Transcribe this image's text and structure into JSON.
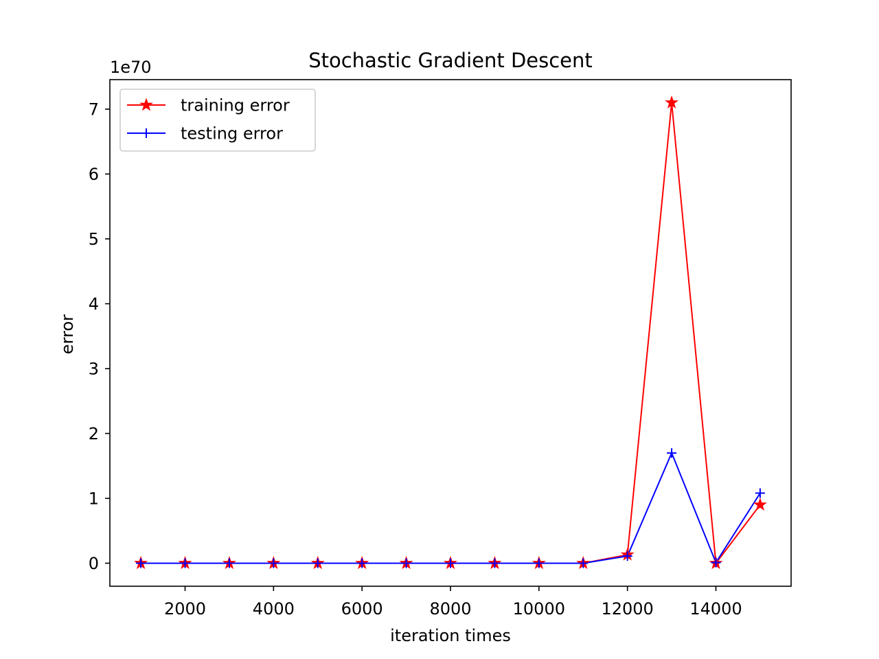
{
  "chart_data": {
    "type": "line",
    "title": "Stochastic Gradient Descent",
    "xlabel": "iteration times",
    "ylabel": "error",
    "y_offset_label": "1e70",
    "y_scale_exponent": 70,
    "xlim": [
      300,
      15700
    ],
    "ylim": [
      -0.355,
      7.455
    ],
    "x_ticks": [
      2000,
      4000,
      6000,
      8000,
      10000,
      12000,
      14000
    ],
    "x_tick_labels": [
      "2000",
      "4000",
      "6000",
      "8000",
      "10000",
      "12000",
      "14000"
    ],
    "y_ticks": [
      0,
      1,
      2,
      3,
      4,
      5,
      6,
      7
    ],
    "y_tick_labels": [
      "0",
      "1",
      "2",
      "3",
      "4",
      "5",
      "6",
      "7"
    ],
    "x": [
      1000,
      2000,
      3000,
      4000,
      5000,
      6000,
      7000,
      8000,
      9000,
      10000,
      11000,
      12000,
      13000,
      14000,
      15000
    ],
    "series": [
      {
        "name": "training error",
        "color": "#ff0000",
        "marker": "star",
        "values": [
          0,
          0,
          0,
          0,
          0,
          0,
          0,
          0,
          0,
          0,
          0,
          0.13,
          7.1,
          0,
          0.9
        ]
      },
      {
        "name": "testing error",
        "color": "#0000ff",
        "marker": "plus",
        "values": [
          0,
          0,
          0,
          0,
          0,
          0,
          0,
          0,
          0,
          0,
          0,
          0.11,
          1.7,
          0.01,
          1.08
        ]
      }
    ],
    "grid": false,
    "legend": "upper left"
  }
}
